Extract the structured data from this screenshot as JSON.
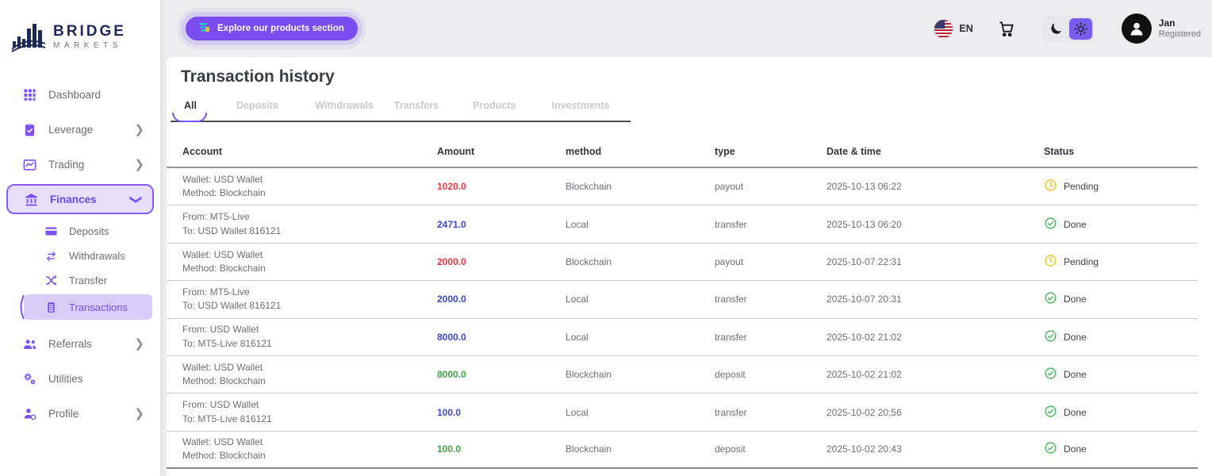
{
  "brand": {
    "line1": "BRIDGE",
    "line2": "MARKETS"
  },
  "topbar": {
    "explore_button": "Explore our products section",
    "language": "EN",
    "user": {
      "name": "Jan",
      "status": "Registered"
    }
  },
  "sidebar": {
    "dashboard": "Dashboard",
    "leverage": "Leverage",
    "trading": "Trading",
    "finances": "Finances",
    "deposits": "Deposits",
    "withdrawals": "Withdrawals",
    "transfer": "Transfer",
    "transactions": "Transactions",
    "referrals": "Referrals",
    "utilities": "Utilities",
    "profile": "Profile"
  },
  "page": {
    "title": "Transaction history"
  },
  "tabs": {
    "items": [
      "All",
      "Deposits",
      "Withdrawals",
      "Transfers",
      "Products",
      "Investments"
    ],
    "active": "All"
  },
  "table": {
    "headers": [
      "Account",
      "Amount",
      "method",
      "type",
      "Date & time",
      "Status"
    ],
    "rows": [
      {
        "account_line1": "Wallet: USD Wallet",
        "account_line2": "Method: Blockchain",
        "amount": "1020.0",
        "amount_color": "red",
        "method": "Blockchain",
        "type": "payout",
        "datetime": "2025-10-13 06:22",
        "status": "Pending"
      },
      {
        "account_line1": "From: MT5-Live",
        "account_line2": "To: USD Wallet 816121",
        "amount": "2471.0",
        "amount_color": "blue",
        "method": "Local",
        "type": "transfer",
        "datetime": "2025-10-13 06:20",
        "status": "Done"
      },
      {
        "account_line1": "Wallet: USD Wallet",
        "account_line2": "Method: Blockchain",
        "amount": "2000.0",
        "amount_color": "red",
        "method": "Blockchain",
        "type": "payout",
        "datetime": "2025-10-07 22:31",
        "status": "Pending"
      },
      {
        "account_line1": "From: MT5-Live",
        "account_line2": "To: USD Wallet 816121",
        "amount": "2000.0",
        "amount_color": "blue",
        "method": "Local",
        "type": "transfer",
        "datetime": "2025-10-07 20:31",
        "status": "Done"
      },
      {
        "account_line1": "From: USD Wallet",
        "account_line2": "To: MT5-Live 816121",
        "amount": "8000.0",
        "amount_color": "blue",
        "method": "Local",
        "type": "transfer",
        "datetime": "2025-10-02 21:02",
        "status": "Done"
      },
      {
        "account_line1": "Wallet: USD Wallet",
        "account_line2": "Method: Blockchain",
        "amount": "8000.0",
        "amount_color": "green",
        "method": "Blockchain",
        "type": "deposit",
        "datetime": "2025-10-02 21:02",
        "status": "Done"
      },
      {
        "account_line1": "From: USD Wallet",
        "account_line2": "To: MT5-Live 816121",
        "amount": "100.0",
        "amount_color": "blue",
        "method": "Local",
        "type": "transfer",
        "datetime": "2025-10-02 20:56",
        "status": "Done"
      },
      {
        "account_line1": "Wallet: USD Wallet",
        "account_line2": "Method: Blockchain",
        "amount": "100.0",
        "amount_color": "green",
        "method": "Blockchain",
        "type": "deposit",
        "datetime": "2025-10-02 20:43",
        "status": "Done"
      }
    ]
  },
  "colors": {
    "accent": "#7c52f5",
    "amount_red": "#e5393f",
    "amount_blue": "#3f48c5",
    "amount_green": "#43a047",
    "status_pending": "#f0c22e",
    "status_done": "#4cb85c"
  }
}
